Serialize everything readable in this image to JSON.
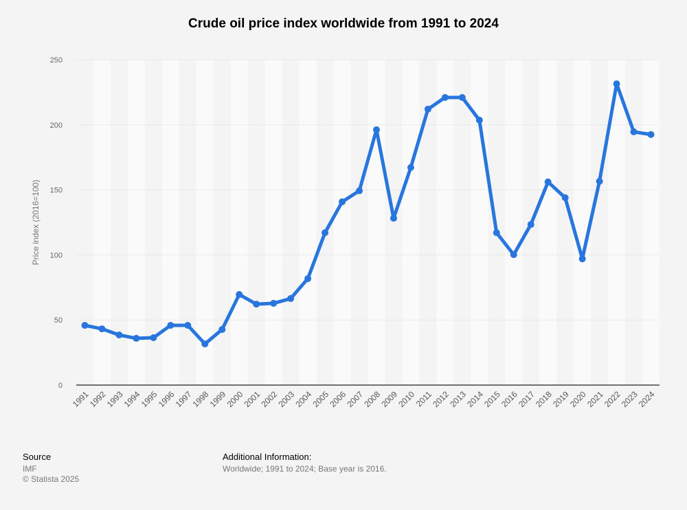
{
  "chart_data": {
    "type": "line",
    "title": "Crude oil price index worldwide from 1991 to 2024",
    "xlabel": "",
    "ylabel": "Price index (2016=100)",
    "ylim": [
      0,
      250
    ],
    "yticks": [
      0,
      50,
      100,
      150,
      200,
      250
    ],
    "grid": true,
    "categories": [
      "1991",
      "1992",
      "1993",
      "1994",
      "1995",
      "1996",
      "1997",
      "1998",
      "1999",
      "2000",
      "2001",
      "2002",
      "2003",
      "2004",
      "2005",
      "2006",
      "2007",
      "2008",
      "2009",
      "2010",
      "2011",
      "2012",
      "2013",
      "2014",
      "2015",
      "2016",
      "2017",
      "2018",
      "2019",
      "2020",
      "2021",
      "2022",
      "2023",
      "2024"
    ],
    "values": [
      45.9,
      43.2,
      38.5,
      35.9,
      36.4,
      45.9,
      45.9,
      31.6,
      42.7,
      69.6,
      62.2,
      62.8,
      66.5,
      81.8,
      117.1,
      140.8,
      149.3,
      196.2,
      128.2,
      167.2,
      212,
      221,
      221,
      203.6,
      117.1,
      100.2,
      123.4,
      156.1,
      144,
      97,
      156.6,
      231.5,
      194.6,
      192.5
    ],
    "line_color": "#2876dd"
  },
  "footer": {
    "source_heading": "Source",
    "source": "IMF",
    "copyright": "© Statista 2025",
    "info_heading": "Additional Information:",
    "info": "Worldwide; 1991 to 2024; Base year is 2016."
  }
}
